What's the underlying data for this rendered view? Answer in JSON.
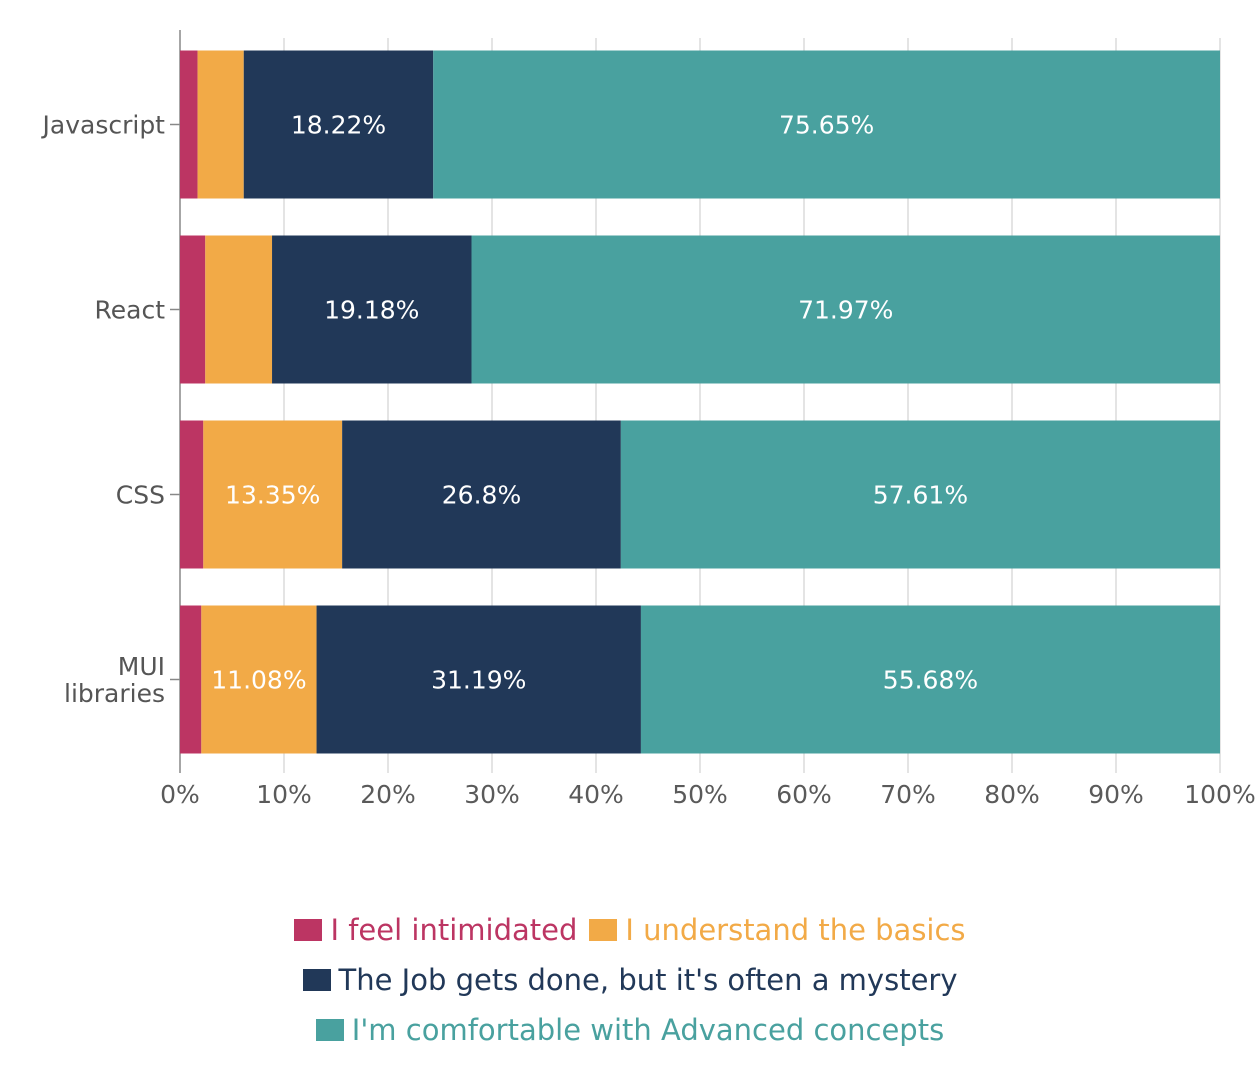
{
  "chart_data": {
    "type": "bar",
    "orientation": "horizontal",
    "stacked": true,
    "categories": [
      "Javascript",
      "React",
      "CSS",
      "MUI libraries"
    ],
    "category_lines": [
      [
        "Javascript"
      ],
      [
        "React"
      ],
      [
        "CSS"
      ],
      [
        "MUI",
        "libraries"
      ]
    ],
    "series": [
      {
        "name": "I feel intimidated",
        "color": "#bc3563",
        "values": [
          1.69,
          2.43,
          2.24,
          2.05
        ]
      },
      {
        "name": "I understand the basics",
        "color": "#f2aa47",
        "values": [
          4.44,
          6.42,
          13.35,
          11.08
        ]
      },
      {
        "name": "The Job gets done, but it's often a mystery",
        "color": "#213858",
        "values": [
          18.22,
          19.18,
          26.8,
          31.19
        ]
      },
      {
        "name": "I'm comfortable with Advanced concepts",
        "color": "#49a19f",
        "values": [
          75.65,
          71.97,
          57.61,
          55.68
        ]
      }
    ],
    "data_labels": [
      [
        "",
        "",
        "18.22%",
        "75.65%"
      ],
      [
        "",
        "",
        "19.18%",
        "71.97%"
      ],
      [
        "",
        "13.35%",
        "26.8%",
        "57.61%"
      ],
      [
        "",
        "11.08%",
        "31.19%",
        "55.68%"
      ]
    ],
    "x_ticks": [
      "0%",
      "10%",
      "20%",
      "30%",
      "40%",
      "50%",
      "60%",
      "70%",
      "80%",
      "90%",
      "100%"
    ],
    "xlim": [
      0,
      100
    ],
    "grid": "vertical",
    "legend_position": "bottom"
  }
}
